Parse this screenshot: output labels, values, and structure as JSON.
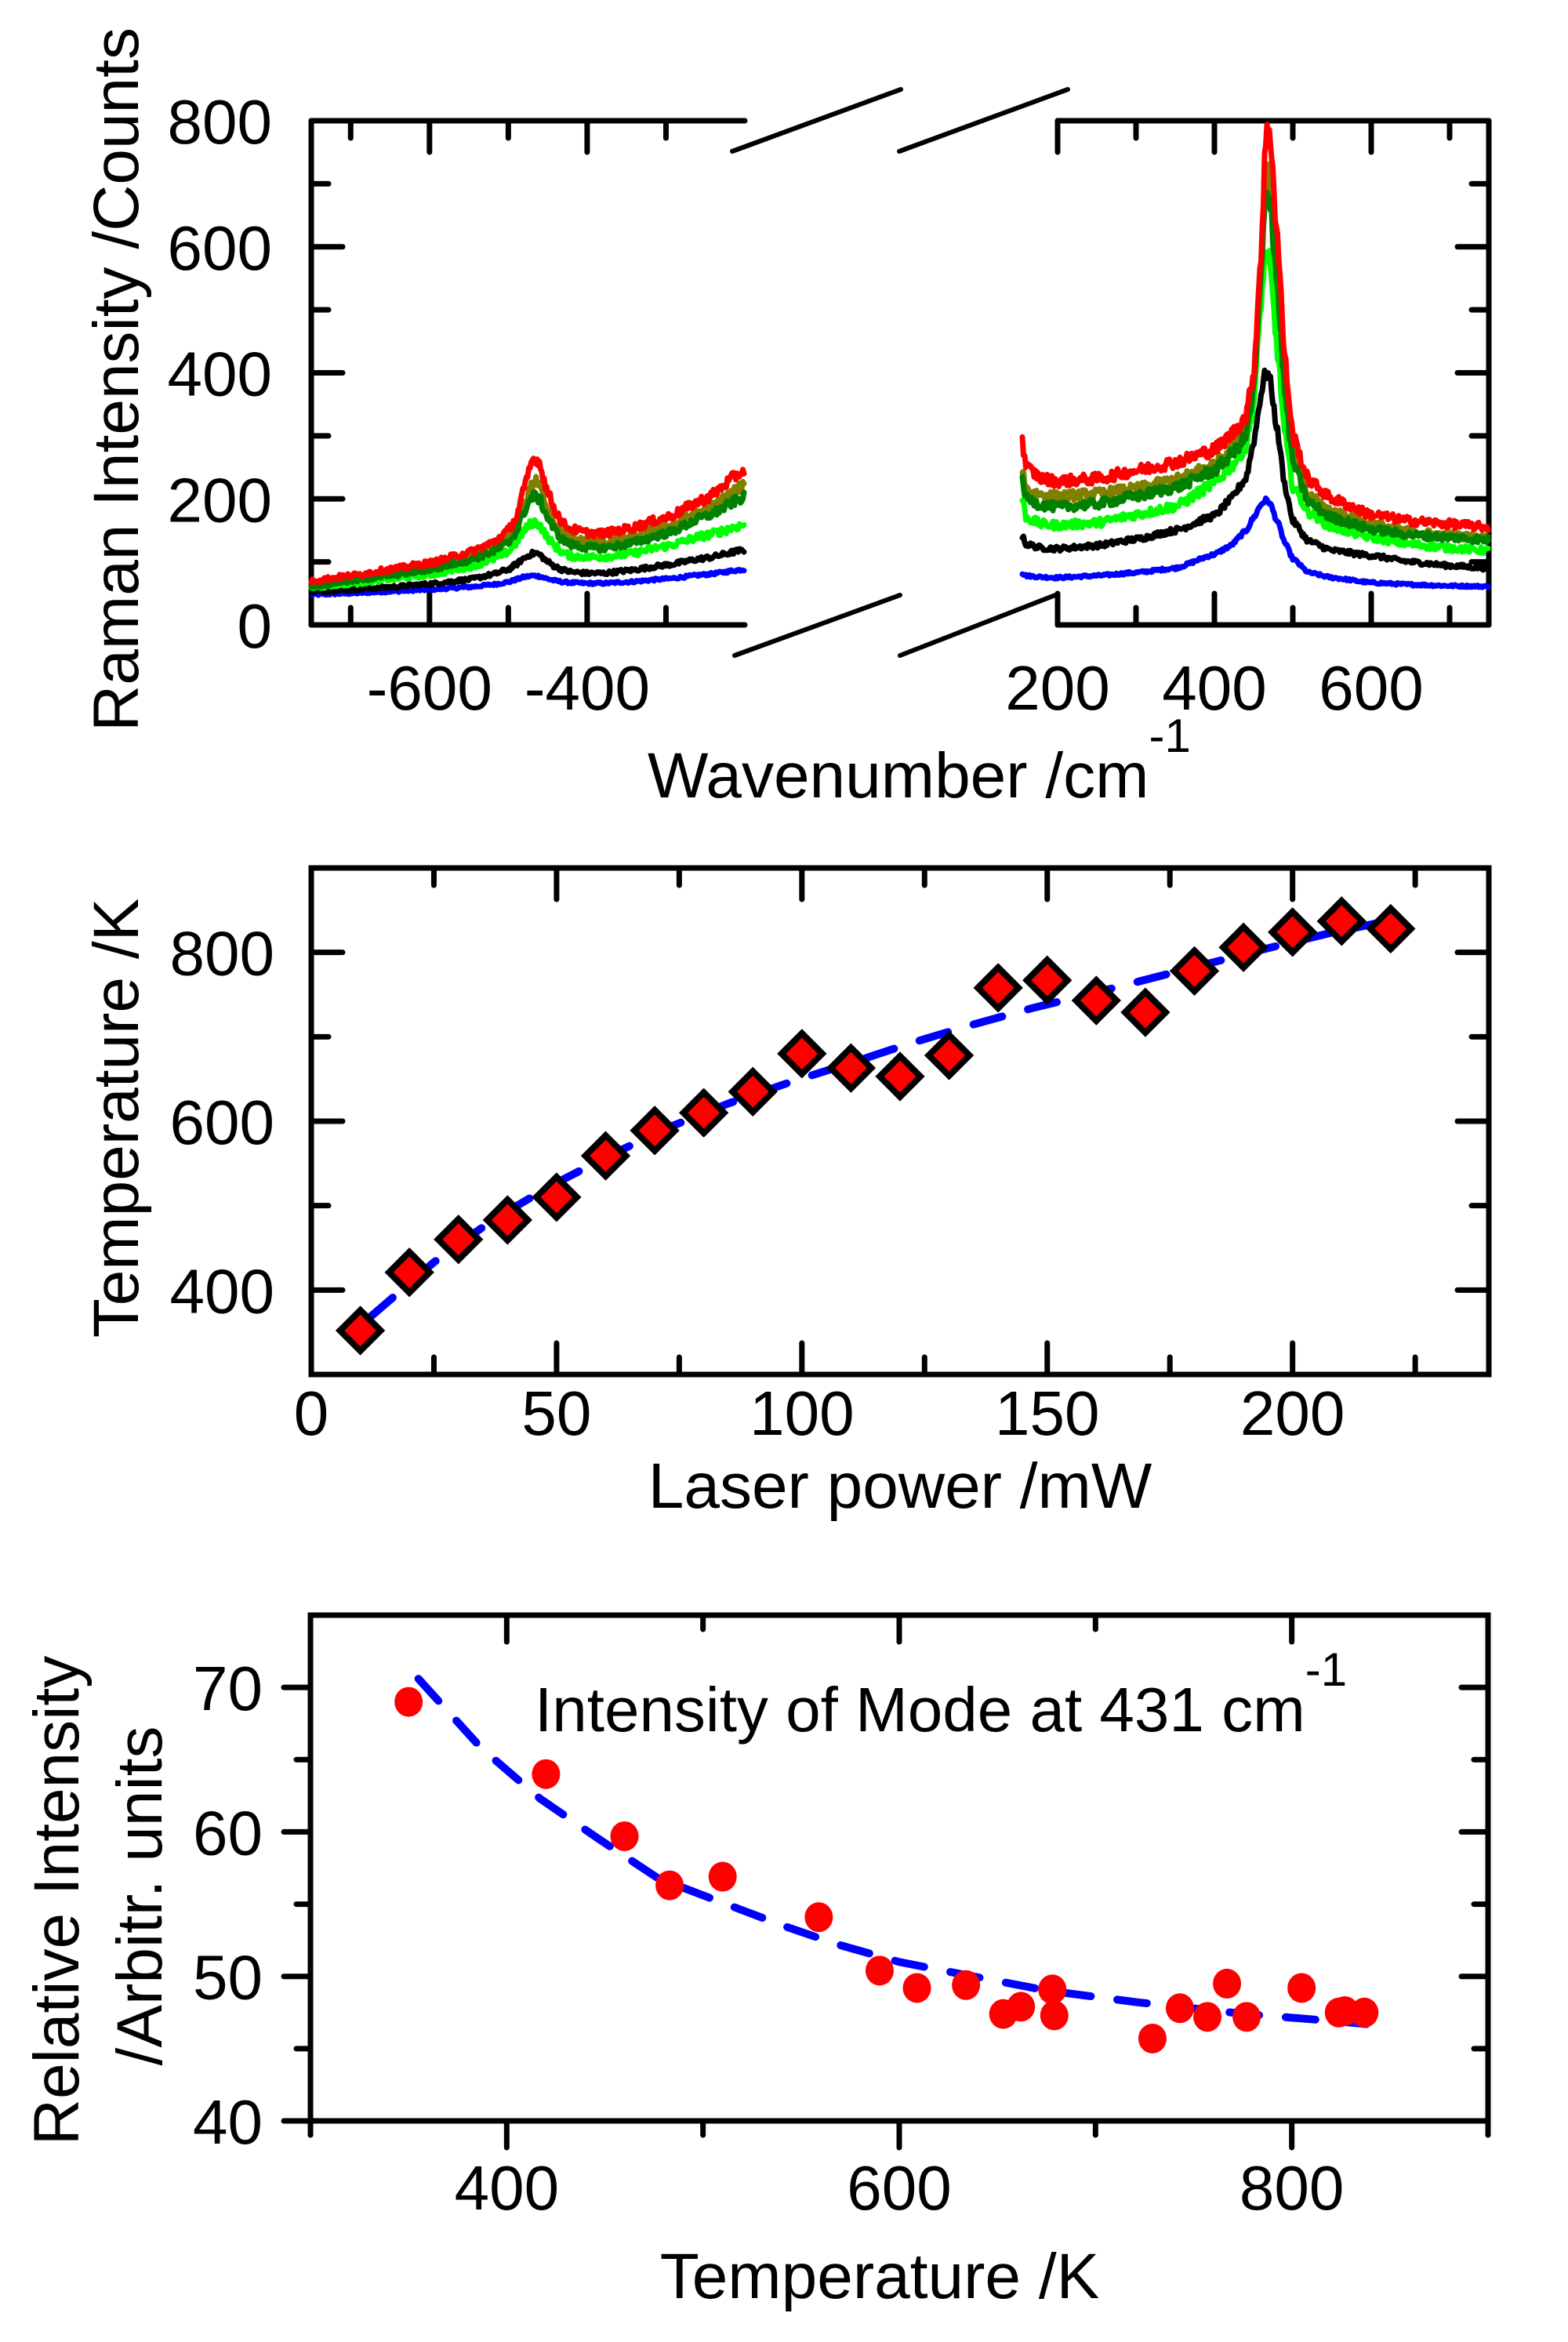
{
  "figure": {
    "panels": 3
  },
  "chart_data": [
    {
      "id": "raman-spectra",
      "type": "line",
      "title": "",
      "xlabel": "Wavenumber /cm",
      "xlabel_superscript": "-1",
      "ylabel": "Raman Intensity /Counts",
      "broken_x_axis": true,
      "segments": [
        {
          "xlim": [
            -750,
            -200
          ],
          "xticks": [
            -600,
            -400
          ],
          "xtick_labels": [
            "-600",
            "-400"
          ]
        },
        {
          "xlim": [
            200,
            750
          ],
          "xticks": [
            200,
            400,
            600
          ],
          "xtick_labels": [
            "200",
            "400",
            "600"
          ]
        }
      ],
      "ylim": [
        0,
        800
      ],
      "yticks": [
        0,
        200,
        400,
        600,
        800
      ],
      "ytick_labels": [
        "0",
        "200",
        "400",
        "600",
        "800"
      ],
      "grid": false,
      "legend": null,
      "x_left": [
        -750,
        -700,
        -650,
        -600,
        -550,
        -520,
        -500,
        -490,
        -480,
        -470,
        -465,
        -460,
        -450,
        -440,
        -430,
        -420,
        -400,
        -380,
        -350,
        -300,
        -250,
        -200
      ],
      "x_right": [
        155,
        160,
        180,
        200,
        250,
        300,
        350,
        400,
        420,
        440,
        450,
        460,
        465,
        470,
        480,
        490,
        500,
        520,
        550,
        600,
        650,
        700,
        750
      ],
      "series": [
        {
          "name": "blue",
          "color": "#0000ff",
          "left": [
            48,
            50,
            53,
            56,
            60,
            64,
            68,
            72,
            76,
            78,
            78,
            77,
            73,
            70,
            68,
            67,
            66,
            66,
            68,
            73,
            80,
            88
          ],
          "right": [
            82,
            78,
            76,
            75,
            78,
            83,
            90,
            112,
            125,
            149,
            170,
            192,
            198,
            195,
            165,
            130,
            105,
            83,
            75,
            67,
            64,
            62,
            61
          ]
        },
        {
          "name": "black",
          "color": "#000000",
          "left": [
            53,
            56,
            60,
            65,
            72,
            80,
            88,
            96,
            106,
            113,
            114,
            111,
            100,
            92,
            87,
            84,
            82,
            82,
            86,
            95,
            106,
            119
          ],
          "right": [
            140,
            128,
            122,
            121,
            126,
            136,
            150,
            173,
            198,
            232,
            290,
            370,
            400,
            395,
            310,
            220,
            165,
            133,
            118,
            110,
            100,
            94,
            90
          ]
        },
        {
          "name": "light-green",
          "color": "#00ff00",
          "left": [
            60,
            66,
            73,
            80,
            92,
            104,
            116,
            130,
            150,
            162,
            163,
            158,
            138,
            124,
            114,
            109,
            108,
            108,
            112,
            125,
            142,
            159
          ],
          "right": [
            200,
            170,
            160,
            158,
            162,
            175,
            188,
            224,
            250,
            282,
            350,
            520,
            590,
            575,
            440,
            300,
            220,
            179,
            155,
            139,
            128,
            122,
            118
          ]
        },
        {
          "name": "olive",
          "color": "#808000",
          "left": [
            66,
            74,
            83,
            92,
            108,
            122,
            138,
            155,
            190,
            222,
            227,
            220,
            185,
            160,
            145,
            137,
            132,
            130,
            137,
            155,
            183,
            221
          ],
          "right": [
            250,
            215,
            206,
            204,
            208,
            216,
            230,
            255,
            280,
            312,
            385,
            580,
            710,
            730,
            560,
            380,
            270,
            205,
            180,
            160,
            148,
            142,
            137
          ]
        },
        {
          "name": "dark-green",
          "color": "#008000",
          "left": [
            62,
            70,
            79,
            88,
            103,
            116,
            130,
            148,
            180,
            203,
            205,
            198,
            170,
            148,
            134,
            127,
            123,
            122,
            128,
            145,
            172,
            203
          ],
          "right": [
            230,
            200,
            190,
            187,
            192,
            204,
            218,
            245,
            268,
            298,
            370,
            560,
            670,
            690,
            540,
            365,
            258,
            195,
            170,
            152,
            143,
            139,
            135
          ]
        },
        {
          "name": "red",
          "color": "#ff0000",
          "left": [
            70,
            78,
            88,
            98,
            115,
            130,
            150,
            170,
            215,
            260,
            265,
            255,
            210,
            180,
            160,
            152,
            146,
            145,
            152,
            170,
            200,
            246
          ],
          "right": [
            290,
            250,
            232,
            228,
            232,
            245,
            258,
            278,
            300,
            330,
            400,
            600,
            760,
            800,
            620,
            420,
            300,
            230,
            200,
            175,
            165,
            160,
            155
          ]
        }
      ]
    },
    {
      "id": "temperature-vs-power",
      "type": "scatter",
      "title": "",
      "xlabel": "Laser power /mW",
      "ylabel": "Temperature /K",
      "xlim": [
        0,
        240
      ],
      "ylim": [
        300,
        900
      ],
      "xticks": [
        0,
        50,
        100,
        150,
        200
      ],
      "xtick_labels": [
        "0",
        "50",
        "100",
        "150",
        "200"
      ],
      "yticks": [
        400,
        600,
        800
      ],
      "ytick_labels": [
        "400",
        "600",
        "800"
      ],
      "grid": false,
      "legend": null,
      "series": [
        {
          "name": "measured",
          "marker": "diamond",
          "color": "#ff0000",
          "edge_color": "#000000",
          "x": [
            10,
            20,
            30,
            40,
            50,
            60,
            70,
            80,
            90,
            100,
            110,
            120,
            130,
            140,
            150,
            160,
            170,
            180,
            190,
            200,
            210,
            220
          ],
          "y": [
            352,
            421,
            460,
            483,
            510,
            559,
            589,
            610,
            635,
            680,
            663,
            653,
            678,
            758,
            767,
            743,
            729,
            778,
            806,
            824,
            837,
            828
          ]
        },
        {
          "name": "fit",
          "style": "dashed",
          "color": "#0000ff",
          "x": [
            12,
            25,
            37,
            49,
            61,
            73,
            85,
            98,
            110,
            122,
            134,
            147,
            159,
            171,
            183,
            195,
            207,
            220
          ],
          "y": [
            368,
            433,
            483,
            524,
            560,
            593,
            621,
            647,
            669,
            692,
            713,
            734,
            751,
            769,
            787,
            805,
            822,
            838
          ]
        }
      ]
    },
    {
      "id": "intensity-vs-temperature",
      "type": "scatter",
      "title": "",
      "annotation": "Intensity of Mode at 431 cm",
      "annotation_superscript": "-1",
      "xlabel": "Temperature /K",
      "ylabel": "Relative Intensity",
      "ylabel_line2": "/Arbitr. units",
      "xlim": [
        300,
        900
      ],
      "ylim": [
        40,
        75
      ],
      "xticks": [
        400,
        600,
        800
      ],
      "xtick_labels": [
        "400",
        "600",
        "800"
      ],
      "yticks": [
        40,
        50,
        60,
        70
      ],
      "ytick_labels": [
        "40",
        "50",
        "60",
        "70"
      ],
      "grid": false,
      "legend": null,
      "series": [
        {
          "name": "measured",
          "marker": "circle",
          "color": "#ff0000",
          "x": [
            350,
            420,
            460,
            483,
            510,
            559,
            590,
            609,
            634,
            653,
            662,
            678,
            679,
            729,
            743,
            757,
            767,
            777,
            805,
            824,
            827,
            837
          ],
          "y": [
            69.0,
            64.0,
            59.7,
            56.3,
            56.9,
            54.1,
            50.4,
            49.2,
            49.4,
            47.4,
            47.9,
            49.1,
            47.3,
            45.7,
            47.8,
            47.2,
            49.5,
            47.2,
            49.2,
            47.5,
            47.6,
            47.5
          ]
        },
        {
          "name": "fit",
          "style": "dashed",
          "color": "#0000ff",
          "x": [
            355,
            387,
            417,
            447,
            477,
            508,
            541,
            569,
            600,
            630,
            676,
            722,
            776,
            822,
            838
          ],
          "y": [
            70.6,
            65.8,
            62.3,
            59.5,
            56.8,
            55.2,
            53.5,
            52.2,
            51.0,
            50.2,
            49.0,
            48.2,
            47.4,
            46.9,
            46.7
          ]
        }
      ]
    }
  ]
}
